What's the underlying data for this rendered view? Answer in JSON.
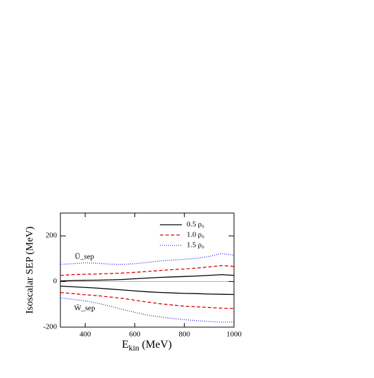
{
  "chart_data": {
    "type": "line",
    "ylabel": "Isoscalar SEP (MeV)",
    "xlabel": "E",
    "xlabel_sub": "kin",
    "xlabel_unit": "(MeV)",
    "annotations": [
      "Ū_sep",
      "W̄_sep"
    ],
    "x": [
      300,
      350,
      400,
      450,
      500,
      550,
      600,
      650,
      700,
      750,
      800,
      850,
      900,
      950,
      1000
    ],
    "series": [
      {
        "name": "0.5 ρ₀",
        "color": "#000000",
        "dash": "none",
        "values": [
          2,
          4,
          5,
          6,
          7,
          9,
          12,
          15,
          18,
          20,
          22,
          24,
          27,
          30,
          27
        ],
        "w_values": [
          -20,
          -23,
          -26,
          -29,
          -33,
          -37,
          -41,
          -45,
          -48,
          -50,
          -52,
          -53,
          -55,
          -56,
          -57
        ]
      },
      {
        "name": "1.0 ρ₀",
        "color": "#e00000",
        "dash": "5,3",
        "values": [
          27,
          30,
          32,
          33,
          35,
          37,
          40,
          44,
          48,
          52,
          55,
          59,
          64,
          70,
          66
        ],
        "w_values": [
          -48,
          -53,
          -58,
          -62,
          -68,
          -74,
          -82,
          -90,
          -97,
          -103,
          -108,
          -111,
          -114,
          -117,
          -118
        ]
      },
      {
        "name": "1.5 ρ₀",
        "color": "#2020e0",
        "dash": "1,2",
        "values": [
          75,
          78,
          82,
          80,
          76,
          75,
          78,
          84,
          90,
          94,
          97,
          102,
          110,
          123,
          115
        ],
        "w_values": [
          -72,
          -78,
          -85,
          -95,
          -108,
          -122,
          -135,
          -147,
          -155,
          -162,
          -167,
          -172,
          -175,
          -178,
          -177
        ]
      }
    ],
    "hline": 0,
    "xlim": [
      300,
      1000
    ],
    "xticks": [
      400,
      600,
      800,
      1000
    ],
    "ylim": [
      -200,
      300
    ],
    "yticks": [
      -200,
      0,
      200
    ],
    "legend": "upper right"
  }
}
